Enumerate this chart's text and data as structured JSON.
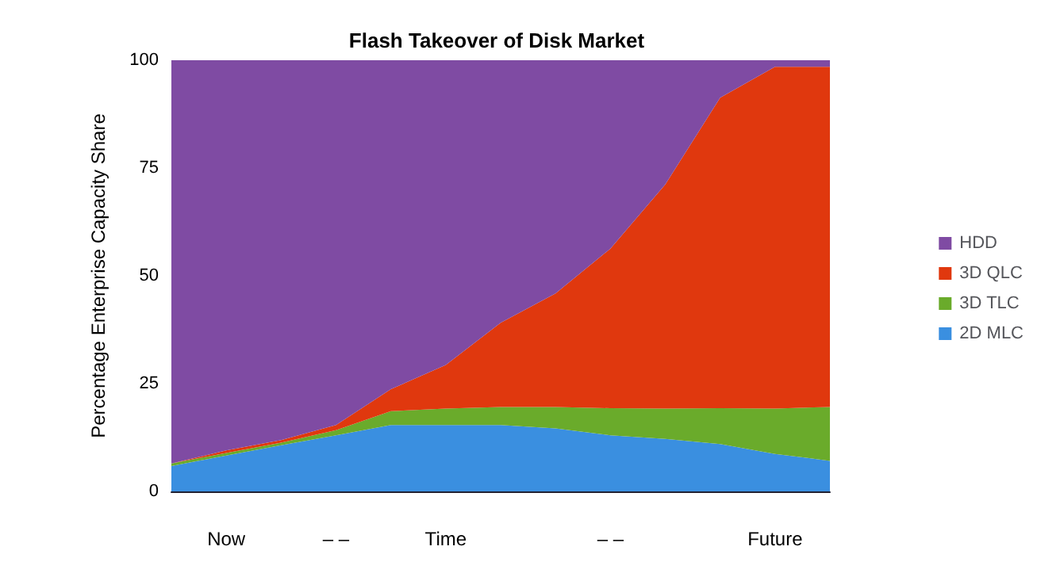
{
  "chart_data": {
    "type": "area",
    "title": "Flash Takeover of Disk Market",
    "ylabel": "Percentage Enterprise Capacity Share",
    "stacked": true,
    "legend": "right",
    "grid": false,
    "categories": [
      null,
      "Now",
      null,
      "– –",
      null,
      "Time",
      null,
      null,
      "– –",
      null,
      null,
      "Future",
      null
    ],
    "ylim": [
      0,
      100
    ],
    "yticks": [
      0,
      25,
      50,
      75,
      100
    ],
    "series": [
      {
        "name": "2D MLC",
        "color": "#3a8fe0",
        "values": [
          5.9,
          8.3,
          10.7,
          13,
          15.4,
          15.4,
          15.4,
          14.6,
          13,
          12.2,
          11,
          8.7,
          7.1
        ]
      },
      {
        "name": "3D TLC",
        "color": "#6aab2b",
        "values": [
          0.6,
          0.6,
          0.6,
          1.2,
          3.2,
          3.8,
          4.2,
          5,
          6.3,
          7,
          8.3,
          10.5,
          12.5
        ]
      },
      {
        "name": "3D QLC",
        "color": "#e0380e",
        "values": [
          0,
          0.6,
          0.6,
          1.2,
          5.1,
          10.1,
          19.5,
          26.3,
          37,
          52,
          72,
          79.3,
          78.9
        ]
      },
      {
        "name": "HDD",
        "color": "#7f4ba3",
        "values": [
          93.5,
          90.5,
          88.1,
          84.6,
          76.3,
          70.7,
          60.9,
          54.1,
          43.7,
          28.8,
          8.7,
          1.5,
          1.5
        ]
      }
    ]
  }
}
